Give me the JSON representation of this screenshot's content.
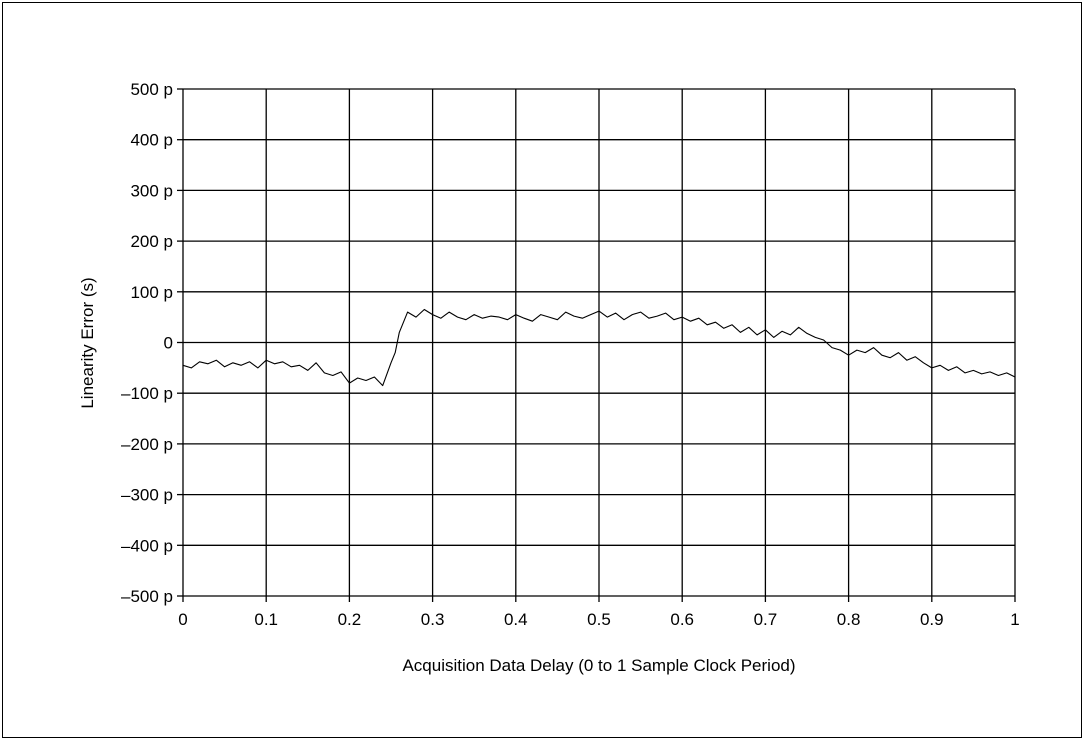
{
  "chart_data": {
    "type": "line",
    "xlabel": "Acquisition Data Delay (0 to 1 Sample Clock Period)",
    "ylabel": "Linearity Error (s)",
    "xlim": [
      0,
      1
    ],
    "ylim": [
      -500,
      500
    ],
    "y_unit": "ps",
    "grid": true,
    "x_ticks": [
      0,
      0.1,
      0.2,
      0.3,
      0.4,
      0.5,
      0.6,
      0.7,
      0.8,
      0.9,
      1
    ],
    "x_tick_labels": [
      "0",
      "0.1",
      "0.2",
      "0.3",
      "0.4",
      "0.5",
      "0.6",
      "0.7",
      "0.8",
      "0.9",
      "1"
    ],
    "y_ticks": [
      500,
      400,
      300,
      200,
      100,
      0,
      -100,
      -200,
      -300,
      -400,
      -500
    ],
    "y_tick_labels": [
      "500 p",
      "400 p",
      "300 p",
      "200 p",
      "100 p",
      "0",
      "–100 p",
      "–200 p",
      "–300 p",
      "–400 p",
      "–500 p"
    ],
    "series": [
      {
        "x": [
          0,
          0.01,
          0.02,
          0.03,
          0.04,
          0.05,
          0.06,
          0.07,
          0.08,
          0.09,
          0.1,
          0.11,
          0.12,
          0.13,
          0.14,
          0.15,
          0.16,
          0.17,
          0.18,
          0.19,
          0.2,
          0.21,
          0.22,
          0.23,
          0.24,
          0.25,
          0.255,
          0.26,
          0.27,
          0.28,
          0.29,
          0.3,
          0.31,
          0.32,
          0.33,
          0.34,
          0.35,
          0.36,
          0.37,
          0.38,
          0.39,
          0.4,
          0.41,
          0.42,
          0.43,
          0.44,
          0.45,
          0.46,
          0.47,
          0.48,
          0.49,
          0.5,
          0.51,
          0.52,
          0.53,
          0.54,
          0.55,
          0.56,
          0.57,
          0.58,
          0.59,
          0.6,
          0.61,
          0.62,
          0.63,
          0.64,
          0.65,
          0.66,
          0.67,
          0.68,
          0.69,
          0.7,
          0.71,
          0.72,
          0.73,
          0.74,
          0.75,
          0.76,
          0.77,
          0.78,
          0.79,
          0.8,
          0.81,
          0.82,
          0.83,
          0.84,
          0.85,
          0.86,
          0.87,
          0.88,
          0.89,
          0.9,
          0.91,
          0.92,
          0.93,
          0.94,
          0.95,
          0.96,
          0.97,
          0.98,
          0.99,
          1.0
        ],
        "values": [
          -45,
          -50,
          -38,
          -42,
          -35,
          -48,
          -40,
          -45,
          -38,
          -50,
          -35,
          -42,
          -38,
          -48,
          -45,
          -55,
          -40,
          -60,
          -65,
          -58,
          -80,
          -70,
          -75,
          -68,
          -85,
          -40,
          -20,
          20,
          60,
          50,
          65,
          55,
          48,
          60,
          50,
          45,
          55,
          48,
          52,
          50,
          45,
          55,
          48,
          42,
          55,
          50,
          45,
          60,
          52,
          48,
          55,
          62,
          50,
          58,
          45,
          55,
          60,
          48,
          52,
          58,
          45,
          50,
          42,
          48,
          35,
          40,
          28,
          35,
          20,
          30,
          15,
          25,
          10,
          22,
          15,
          30,
          18,
          10,
          5,
          -10,
          -15,
          -25,
          -15,
          -20,
          -10,
          -25,
          -30,
          -20,
          -35,
          -28,
          -40,
          -50,
          -45,
          -55,
          -48,
          -60,
          -55,
          -62,
          -58,
          -65,
          -60,
          -68
        ]
      }
    ]
  }
}
